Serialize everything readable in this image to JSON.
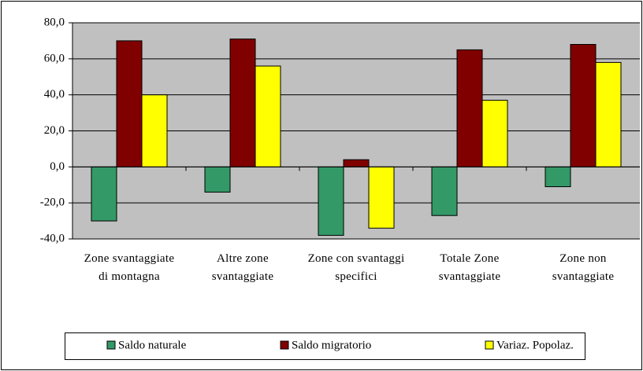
{
  "chart_data": {
    "type": "bar",
    "categories": [
      "Zone svantaggiate di montagna",
      "Altre zone svantaggiate",
      "Zone con svantaggi specifici",
      "Totale Zone svantaggiate",
      "Zone non svantaggiate"
    ],
    "series": [
      {
        "name": "Saldo naturale",
        "color": "#339966",
        "values": [
          -30,
          -14,
          -38,
          -27,
          -11
        ]
      },
      {
        "name": "Saldo migratorio",
        "color": "#800000",
        "values": [
          70,
          71,
          4,
          65,
          68
        ]
      },
      {
        "name": "Variaz. Popolaz.",
        "color": "#ffff00",
        "values": [
          40,
          56,
          -34,
          37,
          58
        ]
      }
    ],
    "ylim": [
      -40,
      80
    ],
    "yticks": [
      {
        "value": -40,
        "label": "-40,0"
      },
      {
        "value": -20,
        "label": "-20,0"
      },
      {
        "value": 0,
        "label": "0,0"
      },
      {
        "value": 20,
        "label": "20,0"
      },
      {
        "value": 40,
        "label": "40,0"
      },
      {
        "value": 60,
        "label": "60,0"
      },
      {
        "value": 80,
        "label": "80,0"
      }
    ],
    "grid": true,
    "legend": "bottom"
  }
}
